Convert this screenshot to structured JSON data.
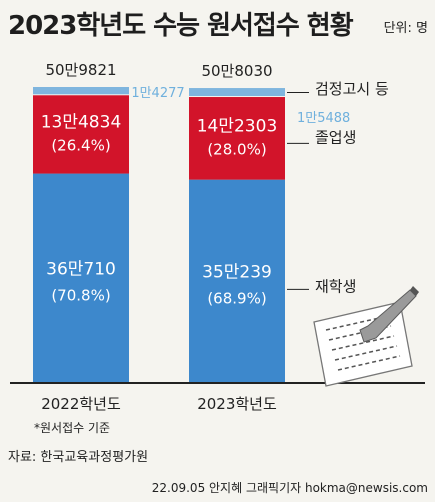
{
  "header": {
    "title": "2023학년도 수능 원서접수 현황",
    "unit": "단위: 명"
  },
  "chart_data": {
    "type": "bar",
    "stacked": true,
    "categories": [
      "2022학년도",
      "2023학년도"
    ],
    "totals": [
      "50만9821",
      "50만8030"
    ],
    "total_values": [
      509821,
      508030
    ],
    "series": [
      {
        "name": "재학생",
        "values": [
          360710,
          350239
        ],
        "labels": [
          "36만710",
          "35만239"
        ],
        "percents": [
          "(70.8%)",
          "(68.9%)"
        ],
        "color": "#3d88cc"
      },
      {
        "name": "졸업생",
        "values": [
          134834,
          142303
        ],
        "labels": [
          "13만4834",
          "14만2303"
        ],
        "percents": [
          "(26.4%)",
          "(28.0%)"
        ],
        "color": "#d2142a"
      },
      {
        "name": "검정고시 등",
        "values": [
          14277,
          15488
        ],
        "labels": [
          "1만4277",
          "1만5488"
        ],
        "color": "#7fb5de"
      }
    ],
    "legend_position": "right",
    "note": "*원서접수 기준"
  },
  "footer": {
    "source": "자료: 한국교육과정평가원",
    "credit": "22.09.05 안지혜 그래픽기자 hokma@newsis.com"
  },
  "colors": {
    "background": "#f5f4ef",
    "baseline": "#222222"
  },
  "icons": [
    "answer-sheet-pencil-icon"
  ]
}
